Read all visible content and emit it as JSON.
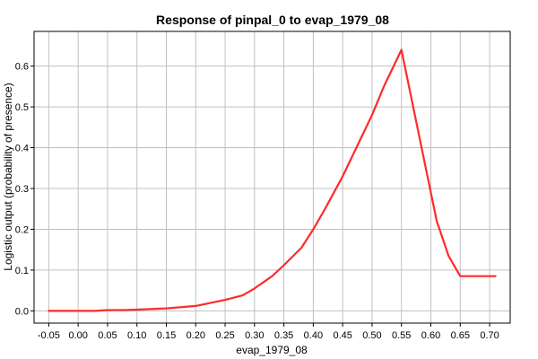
{
  "chart_data": {
    "type": "line",
    "title": "Response of pinpal_0 to evap_1979_08",
    "xlabel": "evap_1979_08",
    "ylabel": "Logistic output (probability of presence)",
    "xlim": [
      -0.075,
      0.735
    ],
    "ylim": [
      -0.03,
      0.685
    ],
    "xticks": [
      "-0.05",
      "0.00",
      "0.05",
      "0.10",
      "0.15",
      "0.20",
      "0.25",
      "0.30",
      "0.35",
      "0.40",
      "0.45",
      "0.50",
      "0.55",
      "0.60",
      "0.65",
      "0.70"
    ],
    "yticks": [
      "0.0",
      "0.1",
      "0.2",
      "0.3",
      "0.4",
      "0.5",
      "0.6"
    ],
    "grid": true,
    "line_color": "#ff2a2a",
    "series": [
      {
        "x": [
          -0.05,
          0.0,
          0.03,
          0.05,
          0.08,
          0.1,
          0.15,
          0.2,
          0.25,
          0.28,
          0.3,
          0.33,
          0.35,
          0.38,
          0.4,
          0.42,
          0.45,
          0.48,
          0.5,
          0.52,
          0.54,
          0.55,
          0.57,
          0.59,
          0.61,
          0.63,
          0.65,
          0.68,
          0.71
        ],
        "values": [
          0.0,
          0.0,
          0.0,
          0.002,
          0.002,
          0.003,
          0.006,
          0.012,
          0.027,
          0.038,
          0.055,
          0.085,
          0.112,
          0.155,
          0.2,
          0.25,
          0.33,
          0.42,
          0.48,
          0.55,
          0.61,
          0.64,
          0.5,
          0.36,
          0.22,
          0.135,
          0.085,
          0.085,
          0.085
        ]
      }
    ]
  }
}
